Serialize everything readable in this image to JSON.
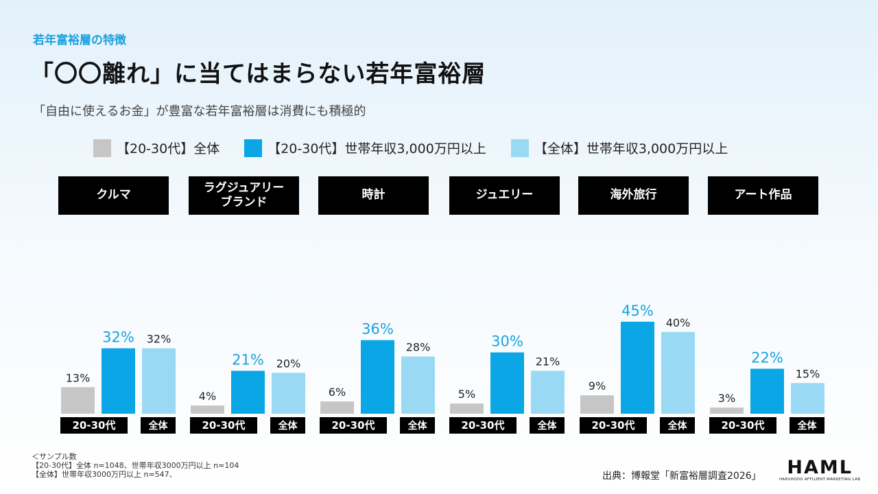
{
  "header": {
    "eyebrow": "若年富裕層の特徴",
    "title": "「〇〇離れ」に当てはまらない若年富裕層",
    "subtitle": "「自由に使えるお金」が豊富な若年富裕層は消費にも積極的"
  },
  "colors": {
    "gray": "#c6c6c6",
    "blue": "#0aa6e6",
    "light_blue": "#9ad9f4",
    "blue_label": "#1aa1df",
    "accent": "#1aa1df"
  },
  "chart_data": {
    "type": "bar",
    "categories": [
      "クルマ",
      "ラグジュアリー\nブランド",
      "時計",
      "ジュエリー",
      "海外旅行",
      "アート作品"
    ],
    "series": [
      {
        "name": "【20-30代】全体",
        "values": [
          13,
          4,
          6,
          5,
          9,
          3
        ],
        "labels": [
          "13%",
          "4%",
          "6%",
          "5%",
          "9%",
          "3%"
        ],
        "color": "#c6c6c6"
      },
      {
        "name": "【20-30代】世帯年収3,000万円以上",
        "values": [
          32,
          21,
          36,
          30,
          45,
          22
        ],
        "labels": [
          "32%",
          "21%",
          "36%",
          "30%",
          "45%",
          "22%"
        ],
        "color": "#0aa6e6"
      },
      {
        "name": "【全体】世帯年収3,000万円以上",
        "values": [
          32,
          20,
          28,
          21,
          40,
          15
        ],
        "labels": [
          "32%",
          "20%",
          "28%",
          "21%",
          "40%",
          "15%"
        ],
        "color": "#9ad9f4"
      }
    ],
    "group_labels": [
      "20-30代",
      "全体"
    ],
    "unit": "%",
    "ylim": [
      0,
      45
    ],
    "grid": false,
    "legend_position": "top"
  },
  "footnotes": {
    "heading": "＜サンプル数",
    "line1": "【20-30代】全体 n=1048、世帯年収3000万円以上 n=104",
    "line2": "【全体】世帯年収3000万円以上 n=547、"
  },
  "source": "出典：博報堂「新富裕層調査2026」",
  "logo": {
    "word": "HAML",
    "tagline": "HAKUHODO AFFLUENT MARKETING LAB"
  }
}
